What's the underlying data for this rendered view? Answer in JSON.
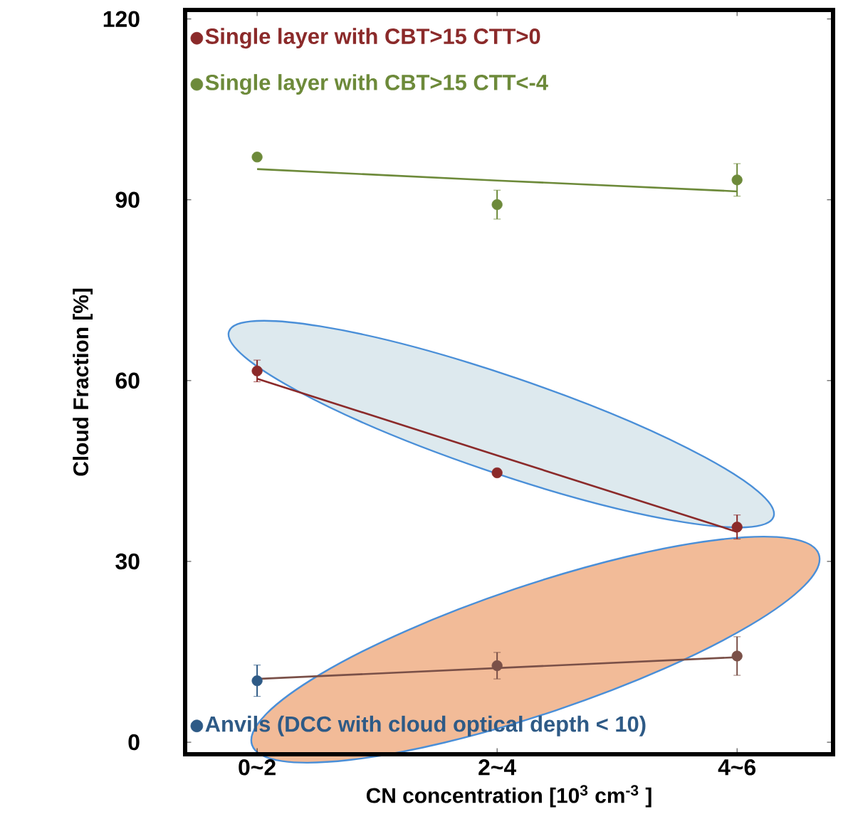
{
  "chart_data": {
    "type": "scatter",
    "xlabel": "CN concentration [10$^{3}$ cm$^{-3}$ ]",
    "ylabel": "Cloud Fraction [%]",
    "categories": [
      "0~2",
      "2~4",
      "4~6"
    ],
    "ylim": [
      -2,
      121.5
    ],
    "yticks": [
      0,
      30,
      60,
      90,
      120
    ],
    "marker": "circle",
    "legend": "left",
    "series": [
      {
        "name": "Single layer with CBT>15 CTT>0",
        "color": "#8b2a2a",
        "values": [
          61.6,
          44.7,
          35.7
        ],
        "errors": [
          1.8,
          null,
          2
        ]
      },
      {
        "name": "Single layer with CBT>15 CTT<-4",
        "color": "#6d8a3a",
        "values": [
          97.1,
          89.2,
          93.3
        ],
        "errors": [
          null,
          2.4,
          2.7
        ]
      },
      {
        "name": "Anvils (DCC with cloud optical depth < 10)",
        "color": "#2e5a86",
        "colors": [
          "#2e5a86",
          "#7a5048",
          "#7a5048"
        ],
        "values": [
          10.2,
          12.7,
          14.3
        ],
        "errors": [
          2.6,
          2.2,
          3.2
        ]
      },
      {
        "type": "line",
        "marker": "none",
        "color": "#8b2a2a",
        "values": [
          60.3,
          47.6,
          34.9
        ]
      },
      {
        "type": "line",
        "marker": "none",
        "color": "#6d8a3a",
        "values": [
          95.1,
          93.2,
          91.4
        ]
      },
      {
        "type": "line",
        "marker": "none",
        "color": "#7a5048",
        "values": [
          10.5,
          12.3,
          14.1
        ]
      }
    ]
  }
}
